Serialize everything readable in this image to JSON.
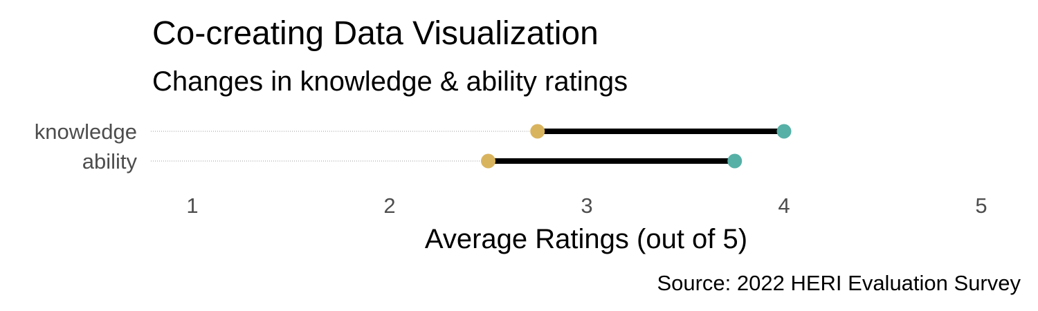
{
  "chart_data": {
    "type": "dumbbell",
    "title": "Co-creating Data Visualization",
    "subtitle": "Changes in knowledge & ability ratings",
    "xlabel": "Average Ratings (out of 5)",
    "ylabel": "",
    "caption": "Source: 2022 HERI Evaluation Survey",
    "xlim": [
      0.8,
      5.1
    ],
    "x_ticks": [
      1,
      2,
      3,
      4,
      5
    ],
    "grid": "dotted horizontal guides to the left of each start point",
    "legend": "none",
    "categories": [
      "knowledge",
      "ability"
    ],
    "series": [
      {
        "values": [
          2.75,
          2.5
        ],
        "color": "#D9B45F"
      },
      {
        "values": [
          4.0,
          3.75
        ],
        "color": "#56B0A6"
      }
    ],
    "connector_color": "#000000"
  }
}
